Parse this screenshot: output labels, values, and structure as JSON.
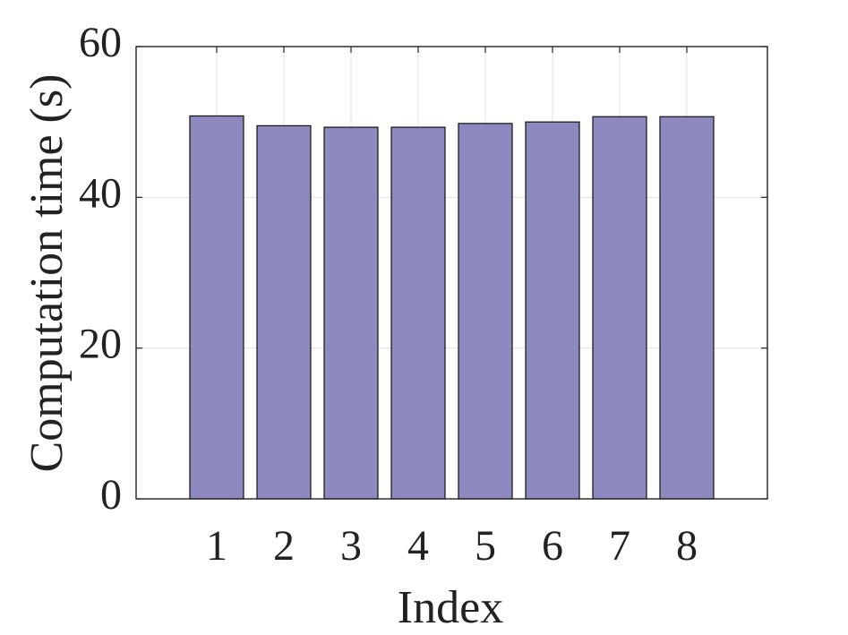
{
  "chart_data": {
    "type": "bar",
    "x_label": "Index",
    "y_label": "Computation time (s)",
    "x": [
      1,
      2,
      3,
      4,
      5,
      6,
      7,
      8
    ],
    "values": [
      50.8,
      49.5,
      49.3,
      49.3,
      49.8,
      50.0,
      50.7,
      50.7
    ],
    "color": "#8b89be",
    "xlim": [
      -0.2,
      9.2
    ],
    "xticks": [
      1,
      2,
      3,
      4,
      5,
      6,
      7,
      8
    ],
    "ylim": [
      0,
      60
    ],
    "yticks": [
      0,
      20,
      40,
      60
    ],
    "grid": true
  }
}
